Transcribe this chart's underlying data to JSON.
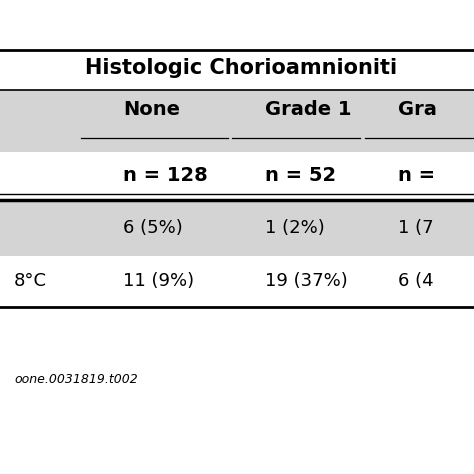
{
  "title": "Histologic Chorioamnioniti",
  "columns": [
    "None",
    "Grade 1",
    "Gra"
  ],
  "subheaders": [
    "n = 128",
    "n = 52",
    "n ="
  ],
  "rows": [
    {
      "label": "",
      "values": [
        "6 (5%)",
        "1 (2%)",
        "1 (7"
      ]
    },
    {
      "label": "8°C",
      "values": [
        "11 (9%)",
        "19 (37%)",
        "6 (4"
      ]
    }
  ],
  "footer": "oone.0031819.t002",
  "bg_color": "#ffffff",
  "stripe_color": "#d4d4d4",
  "text_color": "#000000",
  "font_size": 13,
  "bold_font_size": 14,
  "title_font_size": 15
}
